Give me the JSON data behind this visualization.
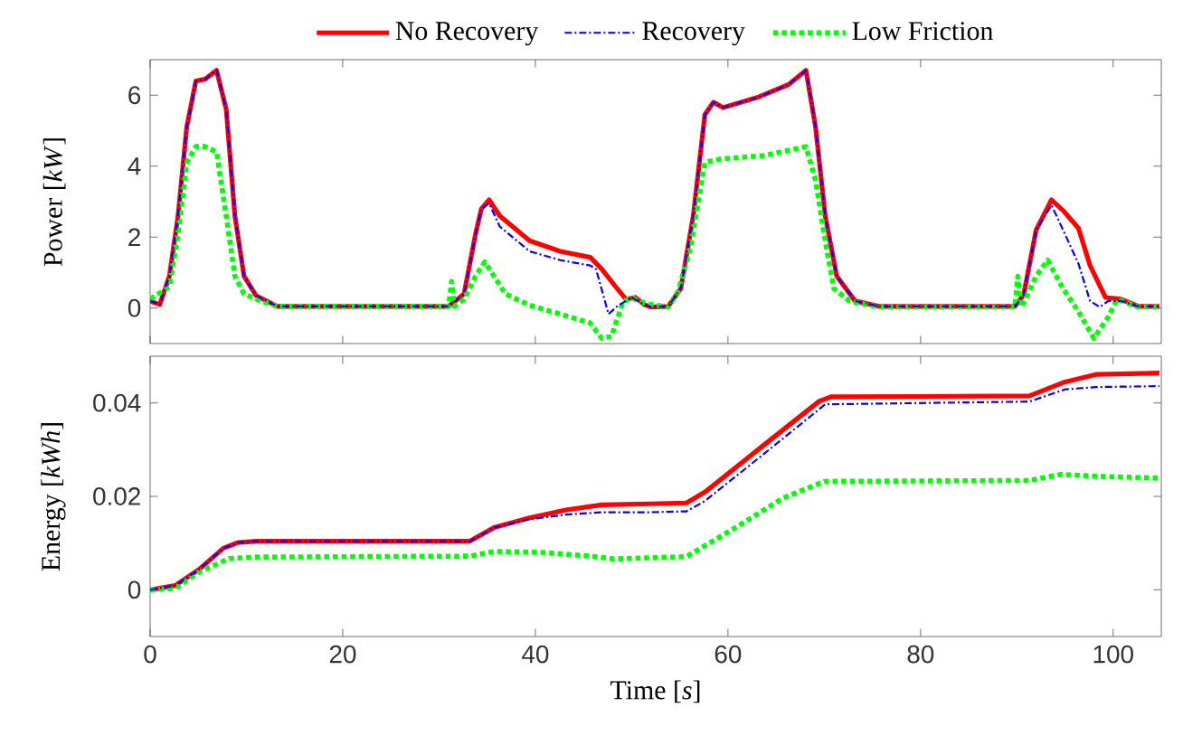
{
  "chart_data": [
    {
      "type": "line",
      "ylabel": "Power [*kW*]",
      "xlim": [
        0,
        105
      ],
      "ylim": [
        -1,
        7
      ],
      "xticks": [
        0,
        20,
        40,
        60,
        80,
        100
      ],
      "yticks": [
        0,
        2,
        4,
        6
      ],
      "tick_labels": "y",
      "legend": "top",
      "series": [
        {
          "name": "No Recovery",
          "color": "#ff0000",
          "line_style": "solid",
          "x": [
            0,
            1,
            2,
            2.9,
            3.8,
            4.75,
            5.7,
            6.9,
            7.9,
            8.8,
            9.75,
            11,
            13.2,
            31,
            32.6,
            33.8,
            34.4,
            35.2,
            36.3,
            39.4,
            42.6,
            45.7,
            46.9,
            48.2,
            49.4,
            50.4,
            51.3,
            52,
            53.8,
            55.1,
            56.4,
            57.6,
            58.5,
            59.5,
            63.2,
            66.3,
            68.1,
            69.1,
            70.1,
            71.3,
            73.2,
            75.7,
            89.8,
            90.7,
            92,
            93.6,
            94.8,
            96.4,
            97.6,
            99.2,
            100.8,
            102.6,
            104.8
          ],
          "values": [
            0.2,
            0.1,
            0.9,
            2.6,
            5.1,
            6.4,
            6.45,
            6.7,
            5.6,
            2.6,
            0.9,
            0.35,
            0.05,
            0.05,
            0.4,
            2.1,
            2.8,
            3.05,
            2.6,
            1.9,
            1.6,
            1.43,
            1.1,
            0.65,
            0.25,
            0.3,
            0.1,
            0.03,
            0.05,
            0.55,
            2.6,
            5.45,
            5.8,
            5.65,
            5.95,
            6.3,
            6.7,
            5.1,
            2.6,
            0.9,
            0.2,
            0.05,
            0.05,
            0.37,
            2.2,
            3.05,
            2.75,
            2.25,
            1.2,
            0.3,
            0.25,
            0.05,
            0.05
          ]
        },
        {
          "name": "Recovery",
          "color": "#0000ff",
          "line_style": "dashdot",
          "x": [
            0,
            1,
            2,
            2.9,
            3.8,
            4.75,
            5.7,
            6.9,
            7.9,
            8.8,
            9.75,
            11,
            13.2,
            31,
            32.6,
            33.8,
            34.4,
            35.2,
            36.3,
            39.4,
            42.6,
            45.7,
            46.3,
            47.6,
            48.5,
            50,
            51.3,
            52,
            53.8,
            55.1,
            56.4,
            57.6,
            58.5,
            59.5,
            63.2,
            66.3,
            68.1,
            69.1,
            70.1,
            71.3,
            73.2,
            75.7,
            89.8,
            90.7,
            92,
            93.6,
            94.8,
            96.4,
            97.6,
            98.6,
            99.5,
            100.8,
            102.6,
            104.8
          ],
          "values": [
            0.2,
            0.1,
            0.9,
            2.6,
            5.1,
            6.4,
            6.45,
            6.7,
            5.6,
            2.6,
            0.9,
            0.35,
            0.05,
            0.05,
            0.4,
            2.1,
            2.8,
            2.95,
            2.3,
            1.6,
            1.35,
            1.2,
            1.1,
            -0.17,
            0.05,
            0.3,
            0.1,
            0.03,
            0.05,
            0.55,
            2.6,
            5.45,
            5.8,
            5.65,
            5.95,
            6.3,
            6.7,
            5.1,
            2.6,
            0.9,
            0.2,
            0.05,
            0.05,
            0.37,
            2.2,
            2.9,
            2.2,
            1.25,
            0.2,
            0.03,
            0.2,
            0.2,
            0.05,
            0.05
          ]
        },
        {
          "name": "Low Friction",
          "color": "#00ff00",
          "line_style": "dotted",
          "x": [
            0,
            2,
            2.9,
            3.8,
            4.75,
            5.7,
            6.9,
            7.9,
            8.8,
            9.75,
            11,
            13.2,
            31,
            31.3,
            31.6,
            32.6,
            33.8,
            34.75,
            35.7,
            36.9,
            39.4,
            42.6,
            45.7,
            46.9,
            47.9,
            49.1,
            50,
            50.7,
            52,
            53.8,
            54.8,
            56.1,
            57.6,
            59.2,
            63.8,
            68.1,
            69.1,
            70.1,
            71,
            72.6,
            75.7,
            89.8,
            90.1,
            90.5,
            92,
            93.2,
            94.8,
            96.4,
            98,
            99.5,
            100.4,
            102.6,
            104.8
          ],
          "values": [
            0.25,
            0.6,
            2.1,
            4.1,
            4.55,
            4.55,
            4.4,
            2.6,
            0.9,
            0.4,
            0.25,
            0.05,
            0.05,
            0.75,
            0.05,
            0.25,
            0.9,
            1.3,
            0.9,
            0.4,
            0.08,
            -0.17,
            -0.42,
            -0.85,
            -0.8,
            0.17,
            0.3,
            0.2,
            0.1,
            0.03,
            0.45,
            1.7,
            4.1,
            4.2,
            4.3,
            4.55,
            3.6,
            1.9,
            0.55,
            0.2,
            0.03,
            0.03,
            0.9,
            0.03,
            0.9,
            1.35,
            0.55,
            -0.1,
            -0.85,
            -0.25,
            0.25,
            0.03,
            0.03
          ]
        }
      ]
    },
    {
      "type": "line",
      "xlabel": "Time [*s*]",
      "ylabel": "Energy [*kWh*]",
      "xlim": [
        0,
        105
      ],
      "ylim": [
        -0.01,
        0.05
      ],
      "xticks": [
        0,
        20,
        40,
        60,
        80,
        100
      ],
      "yticks": [
        0,
        0.02,
        0.04
      ],
      "series": [
        {
          "color": "#ff0000",
          "line_style": "solid",
          "x": [
            0,
            2.6,
            5.1,
            7.6,
            9.1,
            11,
            33.2,
            35.7,
            39.4,
            43.2,
            46.9,
            51.9,
            55.7,
            57.6,
            63.8,
            69.5,
            70.7,
            91.3,
            95,
            98.2,
            104.8
          ],
          "values": [
            0,
            0.0009,
            0.0044,
            0.0089,
            0.0101,
            0.0104,
            0.0104,
            0.0133,
            0.0154,
            0.0171,
            0.0182,
            0.0184,
            0.0186,
            0.0209,
            0.0311,
            0.0404,
            0.0413,
            0.0415,
            0.0445,
            0.0461,
            0.0464
          ]
        },
        {
          "color": "#0000ff",
          "line_style": "dashdot",
          "x": [
            0,
            2.6,
            5.1,
            7.6,
            9.1,
            11,
            33.2,
            35.7,
            39.4,
            43.2,
            46.9,
            51.9,
            55.7,
            57.6,
            63.8,
            70.1,
            91.3,
            95,
            98.2,
            104.8
          ],
          "values": [
            0,
            0.0009,
            0.0044,
            0.0089,
            0.0101,
            0.0104,
            0.0104,
            0.0133,
            0.0151,
            0.0161,
            0.0166,
            0.0166,
            0.0168,
            0.019,
            0.0292,
            0.0397,
            0.0403,
            0.0429,
            0.0434,
            0.0436
          ]
        },
        {
          "color": "#00ff00",
          "line_style": "dotted",
          "x": [
            0,
            2.6,
            5.1,
            8.2,
            11,
            33.2,
            35.7,
            40.7,
            45.7,
            48.2,
            55.7,
            60.7,
            65.7,
            70,
            91.3,
            94.6,
            98.2,
            104.8
          ],
          "values": [
            0,
            0.0003,
            0.0038,
            0.0067,
            0.007,
            0.0072,
            0.0082,
            0.008,
            0.0072,
            0.0066,
            0.0071,
            0.0132,
            0.0196,
            0.0232,
            0.0234,
            0.0247,
            0.0243,
            0.0239
          ]
        }
      ]
    }
  ]
}
